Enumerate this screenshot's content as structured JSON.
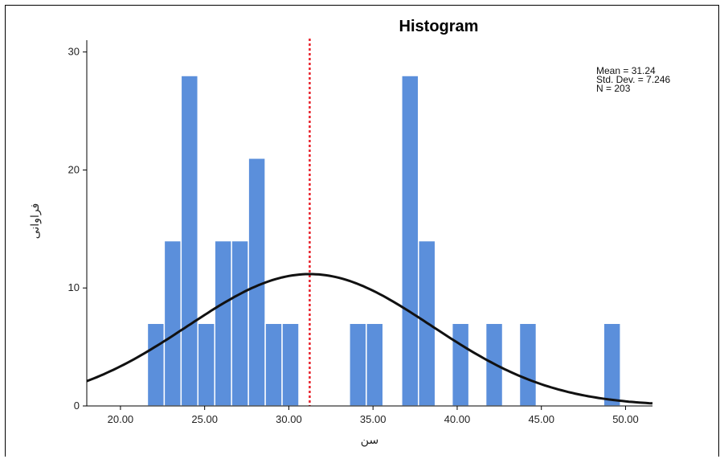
{
  "chart_data": {
    "type": "bar",
    "title": "Histogram",
    "xlabel": "سن",
    "ylabel": "فراوانی",
    "xlim": [
      18.0,
      51.6
    ],
    "ylim": [
      0,
      31
    ],
    "x_ticks": [
      20,
      25,
      30,
      35,
      40,
      45,
      50
    ],
    "x_tick_labels": [
      "20.00",
      "25.00",
      "30.00",
      "35.00",
      "40.00",
      "45.00",
      "50.00"
    ],
    "y_ticks": [
      0,
      10,
      20,
      30
    ],
    "y_tick_labels": [
      "0",
      "10",
      "20",
      "30"
    ],
    "bin_width": 1.0,
    "bins": [
      {
        "start": 21.6,
        "count": 7
      },
      {
        "start": 22.6,
        "count": 14
      },
      {
        "start": 23.6,
        "count": 28
      },
      {
        "start": 24.6,
        "count": 7
      },
      {
        "start": 25.6,
        "count": 14
      },
      {
        "start": 26.6,
        "count": 14
      },
      {
        "start": 27.6,
        "count": 21
      },
      {
        "start": 28.6,
        "count": 7
      },
      {
        "start": 29.6,
        "count": 7
      },
      {
        "start": 33.6,
        "count": 7
      },
      {
        "start": 34.6,
        "count": 7
      },
      {
        "start": 36.7,
        "count": 28
      },
      {
        "start": 37.7,
        "count": 14
      },
      {
        "start": 39.7,
        "count": 7
      },
      {
        "start": 41.7,
        "count": 7
      },
      {
        "start": 43.7,
        "count": 7
      },
      {
        "start": 48.7,
        "count": 7
      }
    ],
    "normal_curve": {
      "mean": 31.24,
      "sd": 7.246,
      "n": 203
    },
    "mean_line_x": 31.24,
    "stats_lines": [
      "Mean = 31.24",
      "Std. Dev. = 7.246",
      "N = 203"
    ],
    "grid": false,
    "legend": "none",
    "colors": {
      "bar": "#5b8fdb",
      "bar_edge": "#ffffff",
      "curve": "#111111",
      "mean_line": "#e8202a"
    }
  }
}
